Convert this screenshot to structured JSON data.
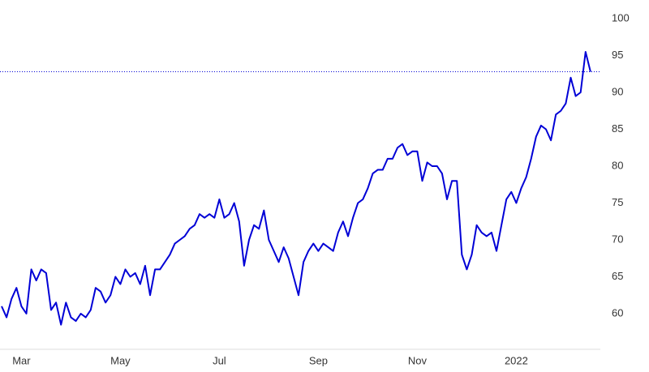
{
  "chart_data": {
    "type": "line",
    "color": "#0000d6",
    "categories": [
      null,
      null,
      null,
      null,
      "Mar",
      null,
      null,
      null,
      null,
      null,
      null,
      null,
      null,
      null,
      null,
      null,
      null,
      null,
      null,
      null,
      null,
      null,
      null,
      null,
      "May",
      null,
      null,
      null,
      null,
      null,
      null,
      null,
      null,
      null,
      null,
      null,
      null,
      null,
      null,
      null,
      null,
      null,
      null,
      null,
      "Jul",
      null,
      null,
      null,
      null,
      null,
      null,
      null,
      null,
      null,
      null,
      null,
      null,
      null,
      null,
      null,
      null,
      null,
      null,
      null,
      "Sep",
      null,
      null,
      null,
      null,
      null,
      null,
      null,
      null,
      null,
      null,
      null,
      null,
      null,
      null,
      null,
      null,
      null,
      null,
      null,
      "Nov",
      null,
      null,
      null,
      null,
      null,
      null,
      null,
      null,
      null,
      null,
      null,
      null,
      null,
      null,
      null,
      null,
      null,
      null,
      null,
      "2022",
      null,
      null,
      null,
      null,
      null,
      null,
      null,
      null,
      null,
      null,
      null,
      null,
      null,
      null,
      null
    ],
    "values": [
      61,
      59.5,
      62,
      63.5,
      61,
      60,
      66,
      64.5,
      66,
      65.5,
      60.5,
      61.5,
      58.5,
      61.5,
      59.5,
      59,
      60,
      59.5,
      60.5,
      63.5,
      63,
      61.5,
      62.5,
      65,
      64,
      66,
      65,
      65.5,
      64,
      66.5,
      62.5,
      66,
      66,
      67,
      68,
      69.5,
      70,
      70.5,
      71.5,
      72,
      73.5,
      73,
      73.5,
      73,
      75.5,
      73,
      73.5,
      75,
      72.5,
      66.5,
      70,
      72,
      71.5,
      74,
      70,
      68.5,
      67,
      69,
      67.5,
      65,
      62.5,
      67,
      68.5,
      69.5,
      68.5,
      69.5,
      69,
      68.5,
      71,
      72.5,
      70.5,
      73,
      75,
      75.5,
      77,
      79,
      79.5,
      79.5,
      81,
      81,
      82.5,
      83,
      81.5,
      82,
      82,
      78,
      80.5,
      80,
      80,
      79,
      75.5,
      78,
      78,
      68,
      66,
      68,
      72,
      71,
      70.5,
      71,
      68.5,
      72,
      75.5,
      76.5,
      75,
      77,
      78.5,
      81,
      84,
      85.5,
      85,
      83.5,
      87,
      87.5,
      88.5,
      92,
      89.5,
      90,
      95.5,
      92.8
    ],
    "ylim": [
      55,
      100
    ],
    "yticks": [
      60,
      65,
      70,
      75,
      80,
      85,
      90,
      95,
      100
    ]
  }
}
